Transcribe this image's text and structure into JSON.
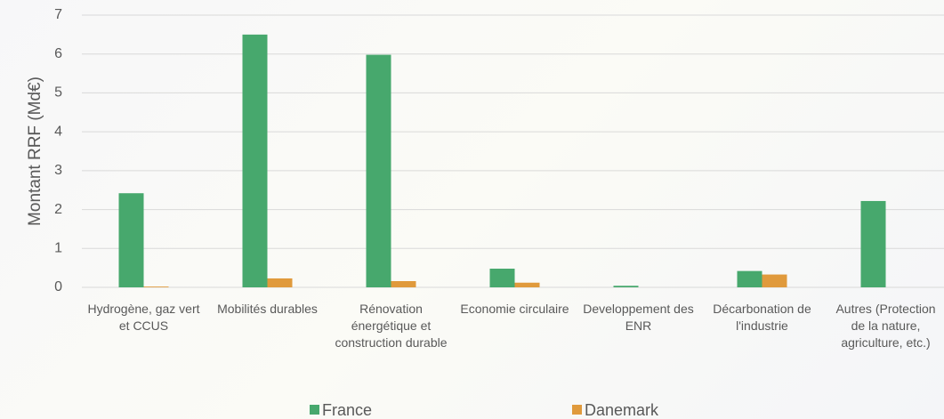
{
  "chart_data": {
    "type": "bar",
    "y_label": "Montant RRF (Md€)",
    "categories": [
      "Hydrogène, gaz vert et CCUS",
      "Mobilités durables",
      "Rénovation énergétique et construction durable",
      "Economie circulaire",
      "Developpement des ENR",
      "Décarbonation de l'industrie",
      "Autres (Protection de la nature, agriculture, etc.)"
    ],
    "series": [
      {
        "name": "France",
        "color": "#47a86d",
        "values": [
          2.42,
          6.5,
          5.98,
          0.48,
          0.04,
          0.42,
          2.22
        ]
      },
      {
        "name": "Danemark",
        "color": "#e09a3c",
        "values": [
          0.02,
          0.23,
          0.16,
          0.12,
          0,
          0.33,
          0
        ]
      }
    ],
    "ylim": [
      0,
      7
    ],
    "yticks": [
      0,
      1,
      2,
      3,
      4,
      5,
      6,
      7
    ],
    "grid": true,
    "legend": "bottom"
  }
}
